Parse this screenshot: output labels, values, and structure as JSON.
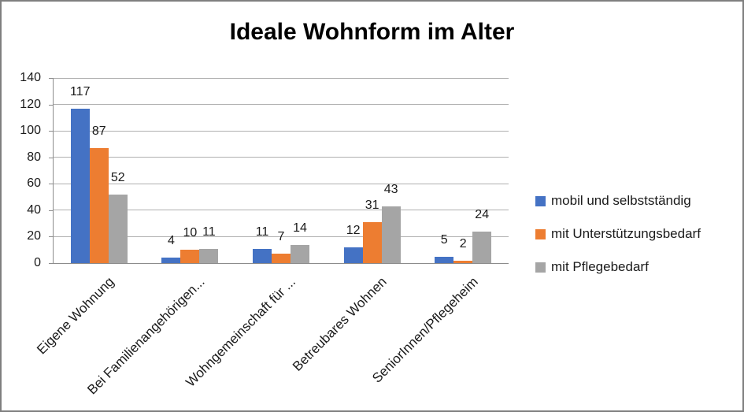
{
  "chart_data": {
    "type": "bar",
    "title": "Ideale Wohnform im Alter",
    "categories": [
      "Eigene Wohnung",
      "Bei Familienangehörigen...",
      "Wohngemeinschaft für ...",
      "Betreubares Wohnen",
      "SeniorInnen/Pflegeheim"
    ],
    "series": [
      {
        "name": "mobil und selbstständig",
        "color": "#4472C4",
        "values": [
          117,
          4,
          11,
          12,
          5
        ]
      },
      {
        "name": "mit Unterstützungsbedarf",
        "color": "#ED7D31",
        "values": [
          87,
          10,
          7,
          31,
          2
        ]
      },
      {
        "name": "mit Pflegebedarf",
        "color": "#A5A5A5",
        "values": [
          52,
          11,
          14,
          43,
          24
        ]
      }
    ],
    "ylim": [
      0,
      140
    ],
    "yticks": [
      0,
      20,
      40,
      60,
      80,
      100,
      120,
      140
    ],
    "xlabel": "",
    "ylabel": "",
    "grid": true,
    "data_labels": true,
    "legend_position": "right",
    "colors": {
      "gridline": "#b0b0b0",
      "axis": "#8c8c8c",
      "text": "#1a1a1a",
      "border": "#7f7f7f"
    }
  }
}
